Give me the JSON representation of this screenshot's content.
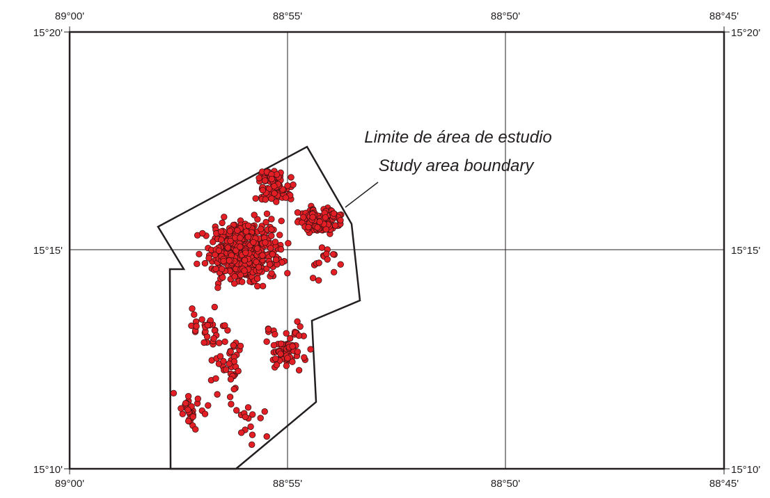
{
  "map": {
    "top_longitude_labels": [
      "89°00'",
      "88°55'",
      "88°50'",
      "88°45'"
    ],
    "bottom_longitude_labels": [
      "89°00'",
      "88°55'",
      "88°50'",
      "88°45'"
    ],
    "left_latitude_labels": [
      "15°20'",
      "15°15'",
      "15°10'"
    ],
    "right_latitude_labels": [
      "15°20'",
      "15°15'",
      "15°10'"
    ],
    "callout": {
      "line1": "Limite de área de estudio",
      "line2": "Study area boundary"
    },
    "colors": {
      "points_fill": "#e31e24",
      "points_stroke": "#3b1214",
      "lines": "#231f20",
      "background": "#ffffff"
    },
    "point_count_estimate": 900
  }
}
